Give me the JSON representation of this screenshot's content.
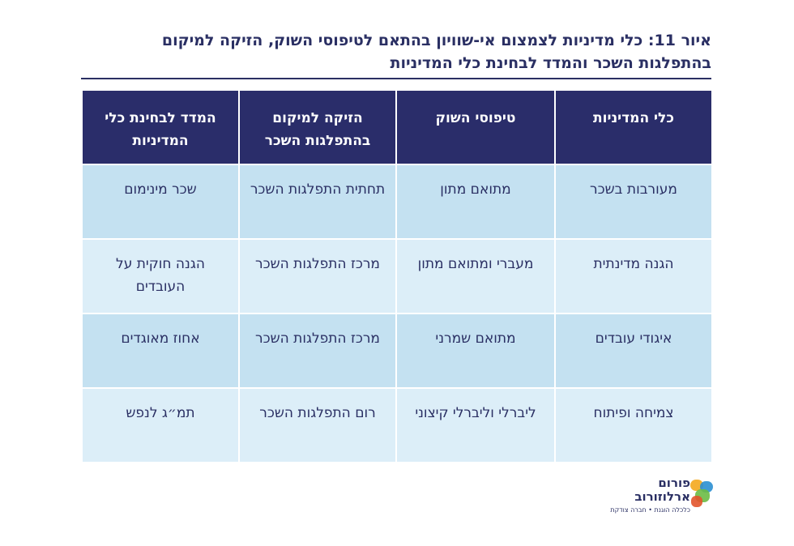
{
  "title": {
    "line1": "איור 11: כלי מדיניות לצמצום אי-שוויון בהתאם לטיפוסי השוק, הזיקה למיקום",
    "line2": "בהתפלגות השכר והמדד לבחינת כלי המדיניות"
  },
  "table": {
    "headers": [
      "כלי המדיניות",
      "טיפוסי השוק",
      "הזיקה למיקום בהתפלגות השכר",
      "המדד לבחינת כלי המדיניות"
    ],
    "rows": [
      [
        "מעורבות בשכר",
        "מתואם מתון",
        "תחתית התפלגות השכר",
        "שכר מינימום"
      ],
      [
        "הגנה מדינתית",
        "מעברי ומתואם מתון",
        "מרכז התפלגות השכר",
        "הגנה חוקית על העובדים"
      ],
      [
        "איגודי עובדים",
        "מתואם שמרני",
        "מרכז התפלגות השכר",
        "אחוז מאוגדים"
      ],
      [
        "צמיחה ופיתוח",
        "ליברלי וליברלי קיצוני",
        "רום התפלגות השכר",
        "תמ״ג לנפש"
      ]
    ]
  },
  "logo": {
    "line1": "פורום",
    "line2": "ארלוזורוב",
    "tagline": "כלכלה הוגנת • חברה צודקת",
    "colors": [
      "#f4a81d",
      "#2b8fd1",
      "#6cbb45",
      "#e2542b"
    ]
  }
}
